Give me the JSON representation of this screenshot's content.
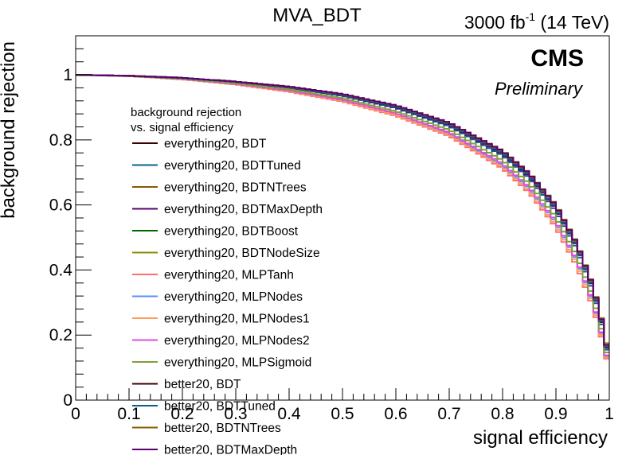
{
  "chart_data": {
    "type": "line",
    "title": "MVA_BDT",
    "lumi_label": {
      "value": "3000 fb",
      "exponent": "-1",
      "energy": " (14 TeV)"
    },
    "experiment": "CMS",
    "status": "Preliminary",
    "xlabel": "signal efficiency",
    "ylabel": "background rejection",
    "xlim": [
      0,
      1
    ],
    "ylim": [
      0,
      1.12
    ],
    "x_ticks": [
      "0",
      "0.1",
      "0.2",
      "0.3",
      "0.4",
      "0.5",
      "0.6",
      "0.7",
      "0.8",
      "0.9",
      "1"
    ],
    "y_ticks": [
      "0",
      "0.2",
      "0.4",
      "0.6",
      "0.8",
      "1"
    ],
    "y_tick_values": [
      0,
      0.2,
      0.4,
      0.6,
      0.8,
      1.0
    ],
    "legend_header": [
      "background rejection",
      "vs. signal efficiency"
    ],
    "legend_placement": "center-left",
    "x": [
      0.0,
      0.1,
      0.2,
      0.3,
      0.4,
      0.5,
      0.6,
      0.7,
      0.8,
      0.85,
      0.9,
      0.94,
      0.97,
      0.99,
      1.0
    ],
    "series": [
      {
        "name": "everything20, BDT",
        "color": "#3d0000",
        "values": [
          1.0,
          0.997,
          0.99,
          0.978,
          0.962,
          0.938,
          0.902,
          0.848,
          0.76,
          0.69,
          0.59,
          0.47,
          0.34,
          0.21,
          0.12
        ]
      },
      {
        "name": "everything20, BDTTuned",
        "color": "#0a5f8f",
        "values": [
          1.0,
          0.997,
          0.99,
          0.977,
          0.96,
          0.935,
          0.898,
          0.842,
          0.752,
          0.682,
          0.58,
          0.46,
          0.33,
          0.2,
          0.11
        ]
      },
      {
        "name": "everything20, BDTNTrees",
        "color": "#8a5a00",
        "values": [
          1.0,
          0.997,
          0.99,
          0.978,
          0.962,
          0.938,
          0.902,
          0.848,
          0.76,
          0.69,
          0.59,
          0.47,
          0.34,
          0.21,
          0.12
        ]
      },
      {
        "name": "everything20, BDTMaxDepth",
        "color": "#5a0073",
        "values": [
          1.0,
          0.997,
          0.99,
          0.977,
          0.961,
          0.937,
          0.9,
          0.846,
          0.757,
          0.687,
          0.587,
          0.467,
          0.337,
          0.207,
          0.115
        ]
      },
      {
        "name": "everything20, BDTBoost",
        "color": "#006400",
        "values": [
          1.0,
          0.997,
          0.991,
          0.979,
          0.963,
          0.94,
          0.905,
          0.852,
          0.765,
          0.696,
          0.597,
          0.477,
          0.347,
          0.215,
          0.125
        ]
      },
      {
        "name": "everything20, BDTNodeSize",
        "color": "#8c8c00",
        "values": [
          1.0,
          0.997,
          0.991,
          0.979,
          0.964,
          0.941,
          0.906,
          0.853,
          0.767,
          0.698,
          0.6,
          0.48,
          0.35,
          0.22,
          0.13
        ]
      },
      {
        "name": "everything20, MLPTanh",
        "color": "#ff6e6e",
        "values": [
          1.0,
          0.996,
          0.986,
          0.97,
          0.948,
          0.918,
          0.874,
          0.812,
          0.712,
          0.638,
          0.532,
          0.41,
          0.285,
          0.165,
          0.09
        ]
      },
      {
        "name": "everything20, MLPNodes",
        "color": "#5a8cff",
        "values": [
          1.0,
          0.996,
          0.987,
          0.972,
          0.951,
          0.922,
          0.88,
          0.82,
          0.722,
          0.65,
          0.545,
          0.425,
          0.298,
          0.175,
          0.095
        ]
      },
      {
        "name": "everything20, MLPNodes1",
        "color": "#ff9c5a",
        "values": [
          1.0,
          0.996,
          0.986,
          0.971,
          0.95,
          0.92,
          0.877,
          0.816,
          0.717,
          0.644,
          0.538,
          0.418,
          0.292,
          0.17,
          0.092
        ]
      },
      {
        "name": "everything20, MLPNodes2",
        "color": "#e14be1",
        "values": [
          1.0,
          0.996,
          0.987,
          0.972,
          0.952,
          0.923,
          0.882,
          0.823,
          0.727,
          0.655,
          0.551,
          0.43,
          0.302,
          0.178,
          0.098
        ]
      },
      {
        "name": "everything20, MLPSigmoid",
        "color": "#7f9f3a",
        "values": [
          1.0,
          0.996,
          0.988,
          0.974,
          0.955,
          0.928,
          0.888,
          0.831,
          0.737,
          0.666,
          0.563,
          0.442,
          0.314,
          0.188,
          0.105
        ]
      },
      {
        "name": "better20, BDT",
        "color": "#3d0000",
        "values": [
          1.0,
          0.997,
          0.991,
          0.979,
          0.963,
          0.94,
          0.905,
          0.851,
          0.764,
          0.695,
          0.596,
          0.476,
          0.346,
          0.214,
          0.122
        ]
      },
      {
        "name": "better20, BDTTuned",
        "color": "#0a5f8f",
        "values": [
          1.0,
          0.997,
          0.99,
          0.978,
          0.962,
          0.938,
          0.902,
          0.848,
          0.76,
          0.69,
          0.59,
          0.47,
          0.34,
          0.21,
          0.12
        ]
      },
      {
        "name": "better20, BDTNTrees",
        "color": "#8a5a00",
        "values": [
          1.0,
          0.997,
          0.991,
          0.979,
          0.963,
          0.94,
          0.905,
          0.851,
          0.764,
          0.695,
          0.596,
          0.476,
          0.346,
          0.214,
          0.122
        ]
      },
      {
        "name": "better20, BDTMaxDepth",
        "color": "#5a0073",
        "values": [
          1.0,
          0.997,
          0.991,
          0.979,
          0.964,
          0.941,
          0.906,
          0.853,
          0.766,
          0.697,
          0.598,
          0.478,
          0.348,
          0.216,
          0.124
        ]
      }
    ]
  }
}
